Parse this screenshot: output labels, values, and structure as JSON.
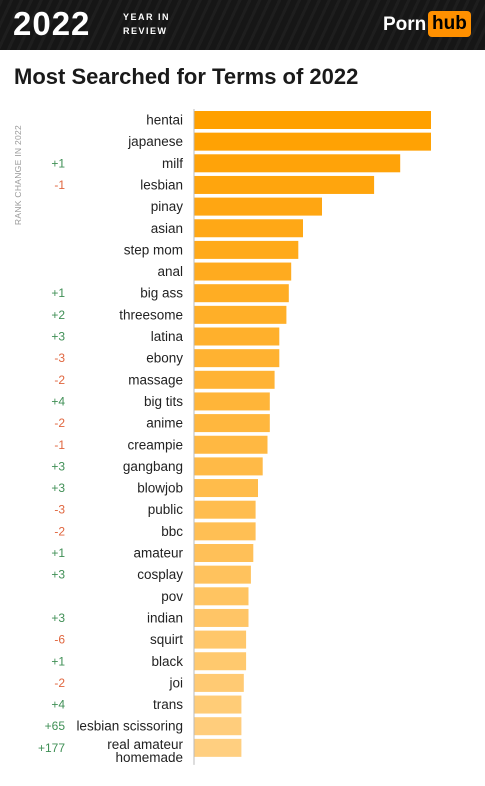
{
  "header": {
    "year": "2022",
    "year_sub_1": "YEAR IN",
    "year_sub_2": "REVIEW",
    "logo_left": "Porn",
    "logo_right": "hub",
    "brand_color": "#ff9000"
  },
  "chart_data": {
    "type": "bar",
    "orientation": "horizontal",
    "title": "Most Searched for Terms of 2022",
    "side_label": "RANK CHANGE IN 2022",
    "categories": [
      "hentai",
      "japanese",
      "milf",
      "lesbian",
      "pinay",
      "asian",
      "step mom",
      "anal",
      "big ass",
      "threesome",
      "latina",
      "ebony",
      "massage",
      "big tits",
      "anime",
      "creampie",
      "gangbang",
      "blowjob",
      "public",
      "bbc",
      "amateur",
      "cosplay",
      "pov",
      "indian",
      "squirt",
      "black",
      "joi",
      "trans",
      "lesbian scissoring",
      "real amateur homemade"
    ],
    "values": [
      100,
      100,
      87,
      76,
      54,
      46,
      44,
      41,
      40,
      39,
      36,
      36,
      34,
      32,
      32,
      31,
      29,
      27,
      26,
      26,
      25,
      24,
      23,
      23,
      22,
      22,
      21,
      20,
      20,
      20
    ],
    "rank_change": [
      "",
      "",
      "+1",
      "-1",
      "",
      "",
      "",
      "",
      "+1",
      "+2",
      "+3",
      "-3",
      "-2",
      "+4",
      "-2",
      "-1",
      "+3",
      "+3",
      "-3",
      "-2",
      "+1",
      "+3",
      "",
      "+3",
      "-6",
      "+1",
      "-2",
      "+4",
      "+65",
      "+177"
    ],
    "colors": {
      "bar_start": "#ffa000",
      "bar_end": "#ffcf80",
      "positive": "#3f8f55",
      "negative": "#e0663f"
    }
  }
}
